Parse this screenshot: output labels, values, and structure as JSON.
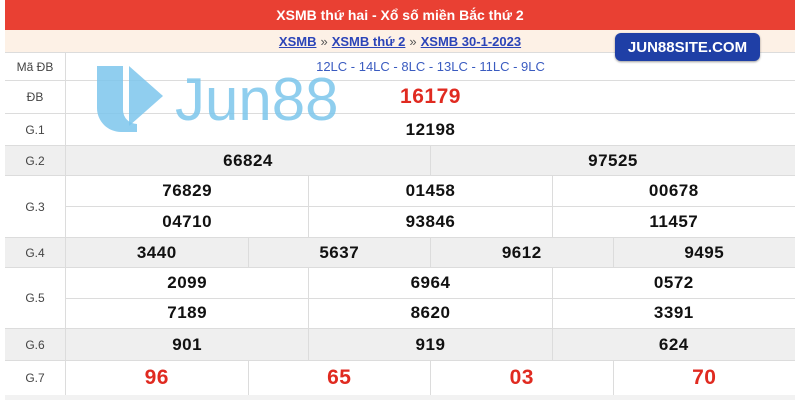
{
  "header": {
    "title": "XSMB thứ hai - Xổ số miền Bắc thứ 2"
  },
  "breadcrumb": {
    "items": [
      "XSMB",
      "XSMB thứ 2",
      "XSMB 30-1-2023"
    ],
    "separator": "»"
  },
  "badge": {
    "text": "JUN88SITE.COM"
  },
  "watermark": {
    "text": "Jun88"
  },
  "colors": {
    "header_bg": "#e94033",
    "breadcrumb_bg": "#fdf1e6",
    "link": "#2b44b8",
    "prize_red": "#e02a20",
    "badge_bg": "#1f3fa6",
    "watermark": "#7cc6ec"
  },
  "rows": [
    {
      "label": "Mã ĐB",
      "style": "code",
      "bg": "white",
      "lines": [
        [
          "12LC - 14LC - 8LC - 13LC - 11LC - 9LC"
        ]
      ]
    },
    {
      "label": "ĐB",
      "style": "red",
      "bg": "white",
      "lines": [
        [
          "16179"
        ]
      ]
    },
    {
      "label": "G.1",
      "style": "",
      "bg": "white",
      "lines": [
        [
          "12198"
        ]
      ]
    },
    {
      "label": "G.2",
      "style": "",
      "bg": "gray",
      "lines": [
        [
          "66824",
          "97525"
        ]
      ]
    },
    {
      "label": "G.3",
      "style": "",
      "bg": "white",
      "lines": [
        [
          "76829",
          "01458",
          "00678"
        ],
        [
          "04710",
          "93846",
          "11457"
        ]
      ]
    },
    {
      "label": "G.4",
      "style": "",
      "bg": "gray",
      "lines": [
        [
          "3440",
          "5637",
          "9612",
          "9495"
        ]
      ]
    },
    {
      "label": "G.5",
      "style": "",
      "bg": "white",
      "lines": [
        [
          "2099",
          "6964",
          "0572"
        ],
        [
          "7189",
          "8620",
          "3391"
        ]
      ]
    },
    {
      "label": "G.6",
      "style": "",
      "bg": "gray",
      "lines": [
        [
          "901",
          "919",
          "624"
        ]
      ]
    },
    {
      "label": "G.7",
      "style": "red",
      "bg": "white",
      "lines": [
        [
          "96",
          "65",
          "03",
          "70"
        ]
      ]
    }
  ]
}
